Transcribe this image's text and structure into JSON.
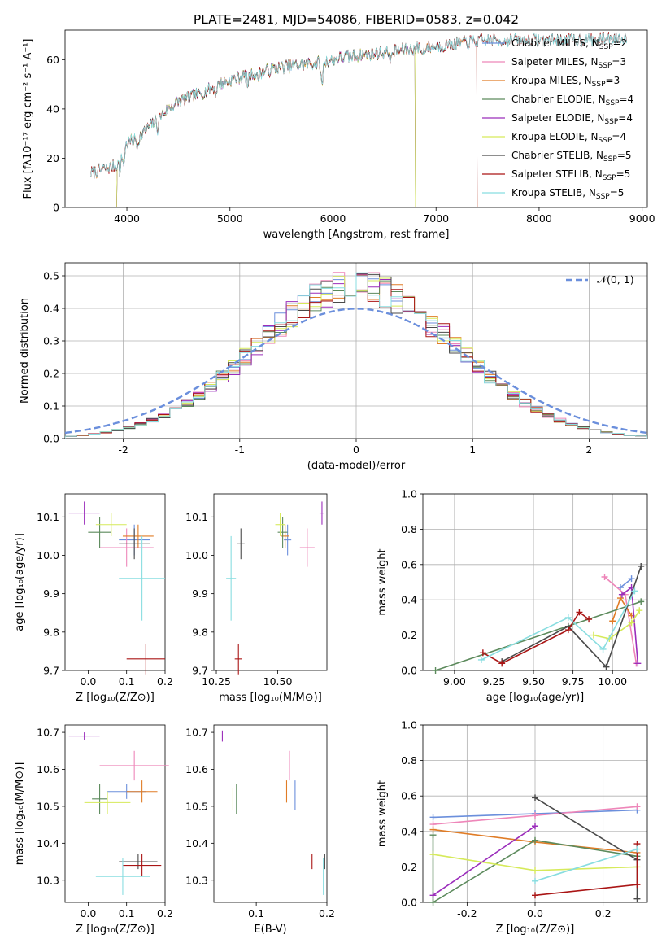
{
  "figure": {
    "title": "PLATE=2481, MJD=54086, FIBERID=0583, z=0.042"
  },
  "colors": {
    "Chabrier MILES": "#6b8fdc",
    "Salpeter MILES": "#ee86b9",
    "Kroupa MILES": "#e07c26",
    "Chabrier ELODIE": "#5c8a5c",
    "Salpeter ELODIE": "#9b2dbb",
    "Kroupa ELODIE": "#d6ea5a",
    "Chabrier STELIB": "#4a4a4a",
    "Salpeter STELIB": "#aa1515",
    "Kroupa STELIB": "#88dde0"
  },
  "chart_data": [
    {
      "id": "spectrum",
      "type": "line",
      "title": "PLATE=2481, MJD=54086, FIBERID=0583, z=0.042",
      "xlabel": "wavelength [Angstrom, rest frame]",
      "ylabel": "Flux [fλ10⁻¹⁷ erg cm⁻² s⁻¹ A⁻¹]",
      "xlim": [
        3400,
        9050
      ],
      "ylim": [
        0,
        72
      ],
      "xticks": [
        4000,
        5000,
        6000,
        7000,
        8000,
        9000
      ],
      "yticks": [
        0,
        20,
        40,
        60
      ],
      "legend_position": "top-right",
      "legend": [
        {
          "label": "Chabrier MILES, N",
          "sub": "SSP",
          "suffix": "=2"
        },
        {
          "label": "Salpeter MILES, N",
          "sub": "SSP",
          "suffix": "=3"
        },
        {
          "label": "Kroupa MILES, N",
          "sub": "SSP",
          "suffix": "=3"
        },
        {
          "label": "Chabrier ELODIE, N",
          "sub": "SSP",
          "suffix": "=4"
        },
        {
          "label": "Salpeter ELODIE, N",
          "sub": "SSP",
          "suffix": "=4"
        },
        {
          "label": "Kroupa ELODIE, N",
          "sub": "SSP",
          "suffix": "=4"
        },
        {
          "label": "Chabrier STELIB, N",
          "sub": "SSP",
          "suffix": "=5"
        },
        {
          "label": "Salpeter STELIB, N",
          "sub": "SSP",
          "suffix": "=5"
        },
        {
          "label": "Kroupa STELIB, N",
          "sub": "SSP",
          "suffix": "=5"
        }
      ],
      "continuum": [
        [
          3650,
          14
        ],
        [
          3900,
          17
        ],
        [
          3950,
          22
        ],
        [
          4000,
          26
        ],
        [
          4100,
          28
        ],
        [
          4200,
          32
        ],
        [
          4300,
          36
        ],
        [
          4400,
          40
        ],
        [
          4500,
          43
        ],
        [
          4700,
          46
        ],
        [
          4900,
          50
        ],
        [
          5100,
          53
        ],
        [
          5300,
          55
        ],
        [
          5500,
          57
        ],
        [
          5700,
          58
        ],
        [
          5900,
          59
        ],
        [
          6100,
          61
        ],
        [
          6300,
          62
        ],
        [
          6500,
          63
        ],
        [
          6700,
          64
        ],
        [
          6900,
          65
        ],
        [
          7100,
          66
        ],
        [
          7300,
          67
        ],
        [
          7500,
          68
        ],
        [
          7700,
          68
        ],
        [
          7900,
          68
        ],
        [
          8100,
          68
        ],
        [
          8300,
          68
        ],
        [
          8500,
          68
        ],
        [
          8700,
          69
        ],
        [
          8850,
          69
        ]
      ],
      "spectrum_range": [
        3650,
        8850
      ],
      "absorption_lines": [
        [
          3934,
          6
        ],
        [
          3969,
          6
        ],
        [
          4102,
          3
        ],
        [
          4300,
          4
        ],
        [
          4861,
          3
        ],
        [
          5175,
          4
        ],
        [
          5270,
          3
        ],
        [
          5892,
          10
        ],
        [
          6563,
          4
        ],
        [
          6870,
          3
        ]
      ],
      "model_ranges": {
        "Chabrier MILES": [
          3650,
          7400
        ],
        "Salpeter MILES": [
          3650,
          7400
        ],
        "Kroupa MILES": [
          3650,
          7400
        ],
        "Chabrier ELODIE": [
          3900,
          6800
        ],
        "Salpeter ELODIE": [
          3900,
          6800
        ],
        "Kroupa ELODIE": [
          3900,
          6800
        ],
        "Chabrier STELIB": [
          3650,
          8850
        ],
        "Salpeter STELIB": [
          3650,
          8850
        ],
        "Kroupa STELIB": [
          3650,
          8850
        ]
      }
    },
    {
      "id": "residuals",
      "type": "bar",
      "xlabel": "(data-model)/error",
      "ylabel": "Normed distribution",
      "xlim": [
        -2.5,
        2.5
      ],
      "ylim": [
        0,
        0.54
      ],
      "xticks": [
        -2,
        -1,
        0,
        1,
        2
      ],
      "yticks": [
        0.0,
        0.1,
        0.2,
        0.3,
        0.4,
        0.5
      ],
      "grid": true,
      "legend_position": "top-right",
      "gaussian_label": "𝒩(0, 1)",
      "gaussian_color": "#6b8fdc",
      "bin_width": 0.1,
      "bin_start": -2.5
    },
    {
      "id": "z-age",
      "type": "scatter",
      "xlabel": "Z [log₁₀(Z/Z⊙)]",
      "ylabel": "age  [log₁₀(age/yr)]",
      "xlim": [
        -0.06,
        0.2
      ],
      "ylim": [
        9.7,
        10.16
      ],
      "xticks": [
        0.0,
        0.1,
        0.2
      ],
      "yticks": [
        9.7,
        9.8,
        9.9,
        10.0,
        10.1
      ],
      "points": [
        {
          "m": "Chabrier MILES",
          "x": 0.12,
          "y": 10.04,
          "xerr": 0.04,
          "yerr": 0.04
        },
        {
          "m": "Salpeter MILES",
          "x": 0.1,
          "y": 10.02,
          "xerr": 0.07,
          "yerr": 0.05
        },
        {
          "m": "Kroupa MILES",
          "x": 0.13,
          "y": 10.05,
          "xerr": 0.04,
          "yerr": 0.03
        },
        {
          "m": "Chabrier ELODIE",
          "x": 0.03,
          "y": 10.06,
          "xerr": 0.03,
          "yerr": 0.04
        },
        {
          "m": "Salpeter ELODIE",
          "x": -0.01,
          "y": 10.11,
          "xerr": 0.04,
          "yerr": 0.03
        },
        {
          "m": "Kroupa ELODIE",
          "x": 0.06,
          "y": 10.08,
          "xerr": 0.04,
          "yerr": 0.03
        },
        {
          "m": "Chabrier STELIB",
          "x": 0.12,
          "y": 10.03,
          "xerr": 0.04,
          "yerr": 0.04
        },
        {
          "m": "Salpeter STELIB",
          "x": 0.15,
          "y": 9.73,
          "xerr": 0.05,
          "yerr": 0.04
        },
        {
          "m": "Kroupa STELIB",
          "x": 0.14,
          "y": 9.94,
          "xerr": 0.06,
          "yerr": 0.11
        }
      ]
    },
    {
      "id": "mass-age",
      "type": "scatter",
      "xlabel": "mass [log₁₀(M/M⊙)]",
      "ylabel": "",
      "xlim": [
        10.24,
        10.7
      ],
      "ylim": [
        9.7,
        10.16
      ],
      "xticks": [
        10.25,
        10.5
      ],
      "yticks": [
        9.7,
        9.8,
        9.9,
        10.0,
        10.1
      ],
      "points": [
        {
          "m": "Chabrier MILES",
          "x": 10.54,
          "y": 10.04,
          "xerr": 0.015,
          "yerr": 0.04
        },
        {
          "m": "Salpeter MILES",
          "x": 10.62,
          "y": 10.02,
          "xerr": 0.03,
          "yerr": 0.05
        },
        {
          "m": "Kroupa MILES",
          "x": 10.53,
          "y": 10.05,
          "xerr": 0.015,
          "yerr": 0.03
        },
        {
          "m": "Chabrier ELODIE",
          "x": 10.52,
          "y": 10.06,
          "xerr": 0.02,
          "yerr": 0.04
        },
        {
          "m": "Salpeter ELODIE",
          "x": 10.68,
          "y": 10.11,
          "xerr": 0.01,
          "yerr": 0.03
        },
        {
          "m": "Kroupa ELODIE",
          "x": 10.51,
          "y": 10.08,
          "xerr": 0.02,
          "yerr": 0.03
        },
        {
          "m": "Chabrier STELIB",
          "x": 10.35,
          "y": 10.03,
          "xerr": 0.015,
          "yerr": 0.04
        },
        {
          "m": "Salpeter STELIB",
          "x": 10.34,
          "y": 9.73,
          "xerr": 0.015,
          "yerr": 0.04
        },
        {
          "m": "Kroupa STELIB",
          "x": 10.31,
          "y": 9.94,
          "xerr": 0.02,
          "yerr": 0.11
        }
      ]
    },
    {
      "id": "age-massweight",
      "type": "line",
      "xlabel": "age  [log₁₀(age/yr)]",
      "ylabel": "mass weight",
      "xlim": [
        8.8,
        10.22
      ],
      "ylim": [
        0,
        1
      ],
      "xticks": [
        9.0,
        9.25,
        9.5,
        9.75,
        10.0
      ],
      "yticks": [
        0.0,
        0.2,
        0.4,
        0.6,
        0.8,
        1.0
      ],
      "grid": true,
      "series": [
        {
          "m": "Chabrier MILES",
          "pts": [
            [
              10.05,
              0.47
            ],
            [
              10.12,
              0.52
            ]
          ]
        },
        {
          "m": "Salpeter MILES",
          "pts": [
            [
              9.95,
              0.53
            ],
            [
              10.08,
              0.43
            ],
            [
              10.15,
              0.04
            ]
          ]
        },
        {
          "m": "Kroupa MILES",
          "pts": [
            [
              10.0,
              0.28
            ],
            [
              10.05,
              0.41
            ],
            [
              10.12,
              0.31
            ]
          ]
        },
        {
          "m": "Chabrier ELODIE",
          "pts": [
            [
              8.88,
              0.0
            ],
            [
              10.18,
              0.39
            ]
          ]
        },
        {
          "m": "Salpeter ELODIE",
          "pts": [
            [
              10.06,
              0.43
            ],
            [
              10.12,
              0.47
            ],
            [
              10.16,
              0.04
            ]
          ]
        },
        {
          "m": "Kroupa ELODIE",
          "pts": [
            [
              9.88,
              0.2
            ],
            [
              9.98,
              0.18
            ],
            [
              10.12,
              0.27
            ],
            [
              10.17,
              0.34
            ]
          ]
        },
        {
          "m": "Chabrier STELIB",
          "pts": [
            [
              9.3,
              0.05
            ],
            [
              9.72,
              0.25
            ],
            [
              9.96,
              0.02
            ],
            [
              10.18,
              0.59
            ]
          ]
        },
        {
          "m": "Salpeter STELIB",
          "pts": [
            [
              9.18,
              0.1
            ],
            [
              9.3,
              0.04
            ],
            [
              9.72,
              0.23
            ],
            [
              9.79,
              0.33
            ],
            [
              9.85,
              0.29
            ]
          ]
        },
        {
          "m": "Kroupa STELIB",
          "pts": [
            [
              9.17,
              0.06
            ],
            [
              9.72,
              0.3
            ],
            [
              9.94,
              0.12
            ],
            [
              10.14,
              0.45
            ]
          ]
        }
      ]
    },
    {
      "id": "z-mass",
      "type": "scatter",
      "xlabel": "Z [log₁₀(Z/Z⊙)]",
      "ylabel": "mass [log₁₀(M/M⊙)]",
      "xlim": [
        -0.06,
        0.2
      ],
      "ylim": [
        10.24,
        10.72
      ],
      "xticks": [
        0.0,
        0.1,
        0.2
      ],
      "yticks": [
        10.3,
        10.4,
        10.5,
        10.6,
        10.7
      ],
      "points": [
        {
          "m": "Chabrier MILES",
          "x": 0.1,
          "y": 10.54,
          "xerr": 0.05,
          "yerr": 0.02
        },
        {
          "m": "Salpeter MILES",
          "x": 0.12,
          "y": 10.61,
          "xerr": 0.09,
          "yerr": 0.04
        },
        {
          "m": "Kroupa MILES",
          "x": 0.14,
          "y": 10.54,
          "xerr": 0.04,
          "yerr": 0.03
        },
        {
          "m": "Chabrier ELODIE",
          "x": 0.03,
          "y": 10.52,
          "xerr": 0.02,
          "yerr": 0.04
        },
        {
          "m": "Salpeter ELODIE",
          "x": -0.01,
          "y": 10.69,
          "xerr": 0.04,
          "yerr": 0.01
        },
        {
          "m": "Kroupa ELODIE",
          "x": 0.05,
          "y": 10.51,
          "xerr": 0.06,
          "yerr": 0.03
        },
        {
          "m": "Chabrier STELIB",
          "x": 0.13,
          "y": 10.35,
          "xerr": 0.05,
          "yerr": 0.02
        },
        {
          "m": "Salpeter STELIB",
          "x": 0.14,
          "y": 10.34,
          "xerr": 0.05,
          "yerr": 0.03
        },
        {
          "m": "Kroupa STELIB",
          "x": 0.09,
          "y": 10.31,
          "xerr": 0.07,
          "yerr": 0.05
        }
      ]
    },
    {
      "id": "ebv-mass",
      "type": "scatter",
      "xlabel": "E(B-V)",
      "ylabel": "",
      "xlim": [
        0.04,
        0.2
      ],
      "ylim": [
        10.24,
        10.72
      ],
      "xticks": [
        0.1,
        0.2
      ],
      "yticks": [
        10.3,
        10.4,
        10.5,
        10.6,
        10.7
      ],
      "points": [
        {
          "m": "Chabrier MILES",
          "x": 0.155,
          "y": 10.53,
          "xerr": 0.0,
          "yerr": 0.04
        },
        {
          "m": "Salpeter MILES",
          "x": 0.147,
          "y": 10.61,
          "xerr": 0.0,
          "yerr": 0.04
        },
        {
          "m": "Kroupa MILES",
          "x": 0.143,
          "y": 10.54,
          "xerr": 0.0,
          "yerr": 0.03
        },
        {
          "m": "Chabrier ELODIE",
          "x": 0.072,
          "y": 10.52,
          "xerr": 0.0,
          "yerr": 0.04
        },
        {
          "m": "Salpeter ELODIE",
          "x": 0.052,
          "y": 10.69,
          "xerr": 0.0,
          "yerr": 0.015
        },
        {
          "m": "Kroupa ELODIE",
          "x": 0.067,
          "y": 10.52,
          "xerr": 0.0,
          "yerr": 0.03
        },
        {
          "m": "Chabrier STELIB",
          "x": 0.197,
          "y": 10.35,
          "xerr": 0.0,
          "yerr": 0.02
        },
        {
          "m": "Salpeter STELIB",
          "x": 0.179,
          "y": 10.35,
          "xerr": 0.0,
          "yerr": 0.02
        },
        {
          "m": "Kroupa STELIB",
          "x": 0.195,
          "y": 10.31,
          "xerr": 0.0,
          "yerr": 0.05
        }
      ]
    },
    {
      "id": "z-massweight",
      "type": "line",
      "xlabel": "Z [log₁₀(Z/Z⊙)]",
      "ylabel": "mass weight",
      "xlim": [
        -0.33,
        0.33
      ],
      "ylim": [
        0,
        1
      ],
      "xticks": [
        -0.2,
        0.0,
        0.2
      ],
      "yticks": [
        0.0,
        0.2,
        0.4,
        0.6,
        0.8,
        1.0
      ],
      "grid": true,
      "series": [
        {
          "m": "Chabrier MILES",
          "pts": [
            [
              -0.3,
              0.48
            ],
            [
              0.0,
              0.5
            ],
            [
              0.3,
              0.52
            ]
          ]
        },
        {
          "m": "Salpeter MILES",
          "pts": [
            [
              -0.3,
              0.44
            ],
            [
              0.0,
              0.49
            ],
            [
              0.3,
              0.54
            ]
          ]
        },
        {
          "m": "Kroupa MILES",
          "pts": [
            [
              -0.3,
              0.41
            ],
            [
              0.0,
              0.34
            ],
            [
              0.3,
              0.28
            ]
          ]
        },
        {
          "m": "Chabrier ELODIE",
          "pts": [
            [
              -0.3,
              0.38
            ],
            [
              -0.3,
              0.0
            ],
            [
              0.0,
              0.35
            ],
            [
              0.3,
              0.26
            ]
          ]
        },
        {
          "m": "Salpeter ELODIE",
          "pts": [
            [
              -0.3,
              0.04
            ],
            [
              0.0,
              0.43
            ]
          ]
        },
        {
          "m": "Kroupa ELODIE",
          "pts": [
            [
              -0.3,
              0.27
            ],
            [
              0.0,
              0.18
            ],
            [
              0.3,
              0.2
            ]
          ]
        },
        {
          "m": "Chabrier STELIB",
          "pts": [
            [
              0.0,
              0.59
            ],
            [
              0.3,
              0.24
            ],
            [
              0.3,
              0.02
            ]
          ]
        },
        {
          "m": "Salpeter STELIB",
          "pts": [
            [
              0.0,
              0.04
            ],
            [
              0.3,
              0.1
            ],
            [
              0.3,
              0.33
            ]
          ]
        },
        {
          "m": "Kroupa STELIB",
          "pts": [
            [
              0.0,
              0.12
            ],
            [
              0.3,
              0.3
            ]
          ]
        }
      ]
    }
  ]
}
